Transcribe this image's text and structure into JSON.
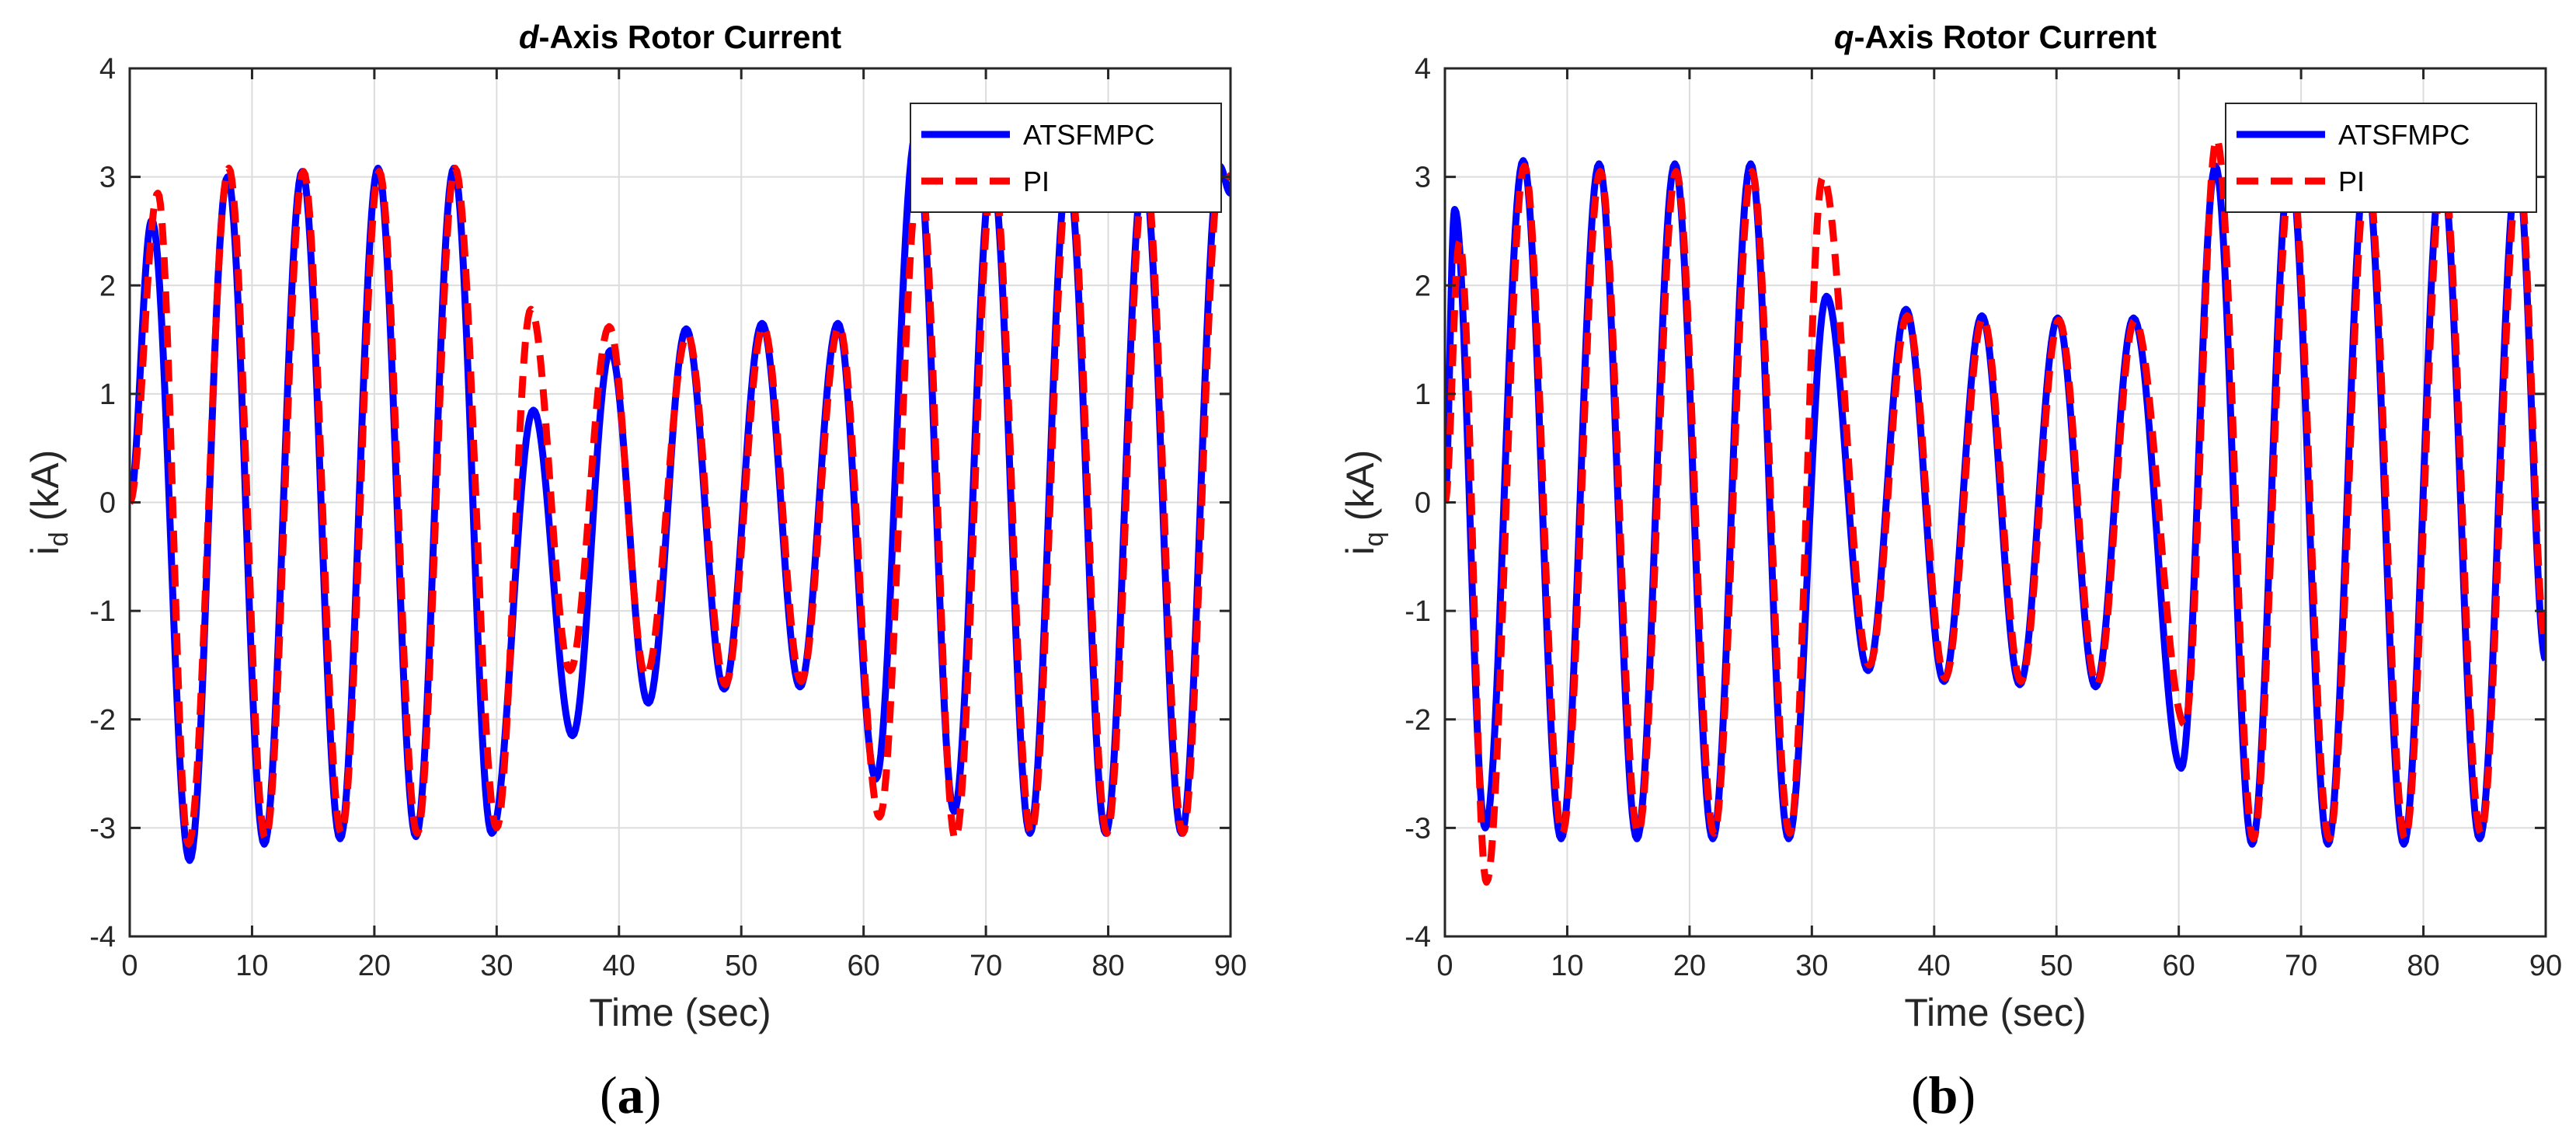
{
  "chart_data": [
    {
      "type": "line",
      "panel_label": "a",
      "title_prefix": "d",
      "title_rest": "-Axis Rotor Current",
      "xlabel": "Time (sec)",
      "ylabel_main": "i",
      "ylabel_sub": "d",
      "ylabel_unit": "(kA)",
      "xlim": [
        0,
        90
      ],
      "ylim": [
        -4,
        4
      ],
      "xticks": [
        0,
        10,
        20,
        30,
        40,
        50,
        60,
        70,
        80,
        90
      ],
      "yticks": [
        -4,
        -3,
        -2,
        -1,
        0,
        1,
        2,
        3,
        4
      ],
      "grid": true,
      "legend_position": "top-right",
      "series": [
        {
          "name": "ATSFMPC",
          "color": "#0000ff",
          "style": "solid",
          "x": [
            0,
            1.8,
            4.9,
            8.0,
            11.0,
            14.1,
            17.2,
            20.3,
            23.4,
            26.5,
            29.6,
            33.0,
            36.2,
            39.3,
            42.4,
            45.5,
            48.6,
            51.7,
            54.8,
            57.9,
            61.0,
            64.3,
            67.4,
            70.5,
            73.6,
            76.7,
            79.8,
            82.9,
            86.0,
            89.1,
            90
          ],
          "y": [
            0,
            2.6,
            -3.3,
            3.0,
            -3.15,
            3.05,
            -3.1,
            3.08,
            -3.08,
            3.08,
            -3.05,
            0.85,
            -2.15,
            1.4,
            -1.85,
            1.6,
            -1.72,
            1.65,
            -1.7,
            1.65,
            -2.55,
            3.4,
            -2.85,
            3.05,
            -3.05,
            3.05,
            -3.05,
            3.05,
            -3.05,
            3.1,
            2.85
          ]
        },
        {
          "name": "PI",
          "color": "#ff0000",
          "style": "dashed",
          "x": [
            0,
            2.3,
            4.8,
            8.1,
            11.1,
            14.2,
            17.3,
            20.4,
            23.5,
            26.6,
            30.0,
            32.8,
            36.0,
            39.2,
            42.2,
            45.6,
            48.7,
            51.8,
            54.9,
            58.0,
            61.3,
            64.6,
            67.5,
            70.6,
            73.7,
            76.8,
            79.9,
            83.0,
            86.1,
            89.2,
            90
          ],
          "y": [
            0,
            2.85,
            -3.15,
            3.08,
            -3.1,
            3.05,
            -3.05,
            3.05,
            -3.05,
            3.08,
            -3.0,
            1.78,
            -1.55,
            1.62,
            -1.6,
            1.55,
            -1.68,
            1.62,
            -1.65,
            1.62,
            -2.9,
            3.05,
            -3.1,
            3.05,
            -3.05,
            3.05,
            -3.05,
            3.05,
            -3.05,
            3.05,
            3.0
          ]
        }
      ]
    },
    {
      "type": "line",
      "panel_label": "b",
      "title_prefix": "q",
      "title_rest": "-Axis Rotor Current",
      "xlabel": "Time (sec)",
      "ylabel_main": "i",
      "ylabel_sub": "q",
      "ylabel_unit": "(kA)",
      "xlim": [
        0,
        90
      ],
      "ylim": [
        -4,
        4
      ],
      "xticks": [
        0,
        10,
        20,
        30,
        40,
        50,
        60,
        70,
        80,
        90
      ],
      "yticks": [
        -4,
        -3,
        -2,
        -1,
        0,
        1,
        2,
        3,
        4
      ],
      "grid": true,
      "legend_position": "top-right",
      "series": [
        {
          "name": "ATSFMPC",
          "color": "#0000ff",
          "style": "solid",
          "x": [
            0,
            0.8,
            3.3,
            6.4,
            9.5,
            12.6,
            15.7,
            18.8,
            21.9,
            25.0,
            28.1,
            31.2,
            34.6,
            37.7,
            40.8,
            43.9,
            47.0,
            50.1,
            53.2,
            56.3,
            60.2,
            63.0,
            66.0,
            69.1,
            72.2,
            75.3,
            78.4,
            81.5,
            84.6,
            87.7,
            90
          ],
          "y": [
            0,
            2.7,
            -3.0,
            3.15,
            -3.1,
            3.12,
            -3.1,
            3.12,
            -3.1,
            3.12,
            -3.1,
            1.9,
            -1.55,
            1.78,
            -1.65,
            1.72,
            -1.68,
            1.7,
            -1.7,
            1.7,
            -2.45,
            3.1,
            -3.15,
            3.1,
            -3.15,
            3.1,
            -3.15,
            3.1,
            -3.1,
            3.1,
            -1.45
          ]
        },
        {
          "name": "PI",
          "color": "#ff0000",
          "style": "dashed",
          "x": [
            0,
            1.2,
            3.4,
            6.5,
            9.6,
            12.7,
            15.8,
            18.9,
            22.0,
            25.1,
            28.2,
            30.9,
            34.7,
            37.8,
            40.9,
            44.0,
            47.1,
            50.2,
            53.3,
            56.4,
            60.5,
            63.1,
            66.1,
            69.2,
            72.3,
            75.4,
            78.5,
            81.6,
            84.7,
            87.8,
            90
          ],
          "y": [
            0,
            2.4,
            -3.5,
            3.1,
            -3.05,
            3.05,
            -3.05,
            3.05,
            -3.05,
            3.05,
            -3.05,
            3.0,
            -1.5,
            1.72,
            -1.62,
            1.7,
            -1.65,
            1.68,
            -1.68,
            1.68,
            -2.05,
            3.35,
            -3.1,
            3.05,
            -3.1,
            3.05,
            -3.1,
            3.05,
            -3.05,
            3.05,
            -1.3
          ]
        }
      ]
    }
  ]
}
